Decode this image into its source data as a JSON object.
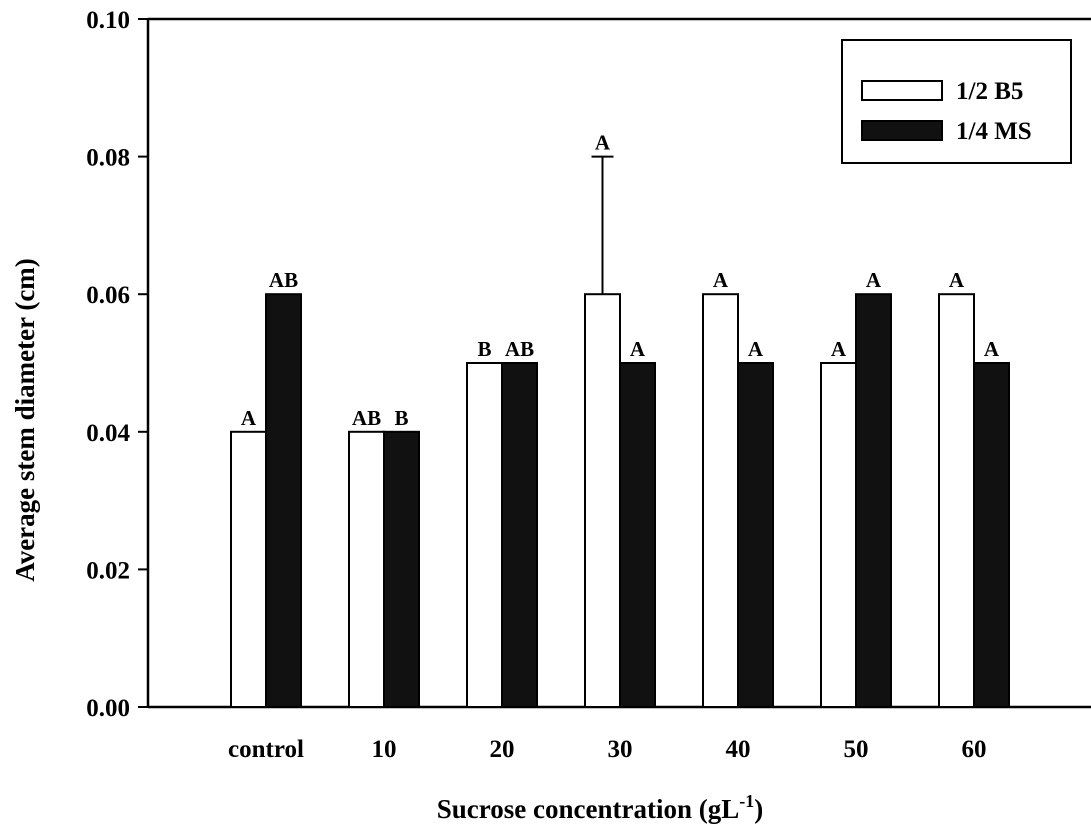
{
  "chart_data": {
    "type": "bar",
    "title": "",
    "xlabel": {
      "text": "Sucrose concentration (gL",
      "sup": "-1",
      "after": ")"
    },
    "ylabel": "Average stem diameter (cm)",
    "ylim": [
      0,
      0.1
    ],
    "yticks": [
      "0.00",
      "0.02",
      "0.04",
      "0.06",
      "0.08",
      "0.10"
    ],
    "categories": [
      "control",
      "10",
      "20",
      "30",
      "40",
      "50",
      "60"
    ],
    "series": [
      {
        "name": "1/2 B5",
        "color": "#ffffff",
        "values": [
          0.04,
          0.04,
          0.05,
          0.06,
          0.06,
          0.05,
          0.06
        ],
        "error": [
          0,
          0,
          0,
          0.02,
          0,
          0,
          0
        ],
        "labels": [
          "A",
          "AB",
          "B",
          "A",
          "A",
          "A",
          "A"
        ]
      },
      {
        "name": "1/4 MS",
        "color": "#111111",
        "values": [
          0.06,
          0.04,
          0.05,
          0.05,
          0.05,
          0.06,
          0.05
        ],
        "error": [
          0,
          0,
          0,
          0,
          0,
          0,
          0
        ],
        "labels": [
          "AB",
          "B",
          "AB",
          "A",
          "A",
          "A",
          "A"
        ]
      }
    ],
    "legend": "top-right",
    "grid": false
  }
}
